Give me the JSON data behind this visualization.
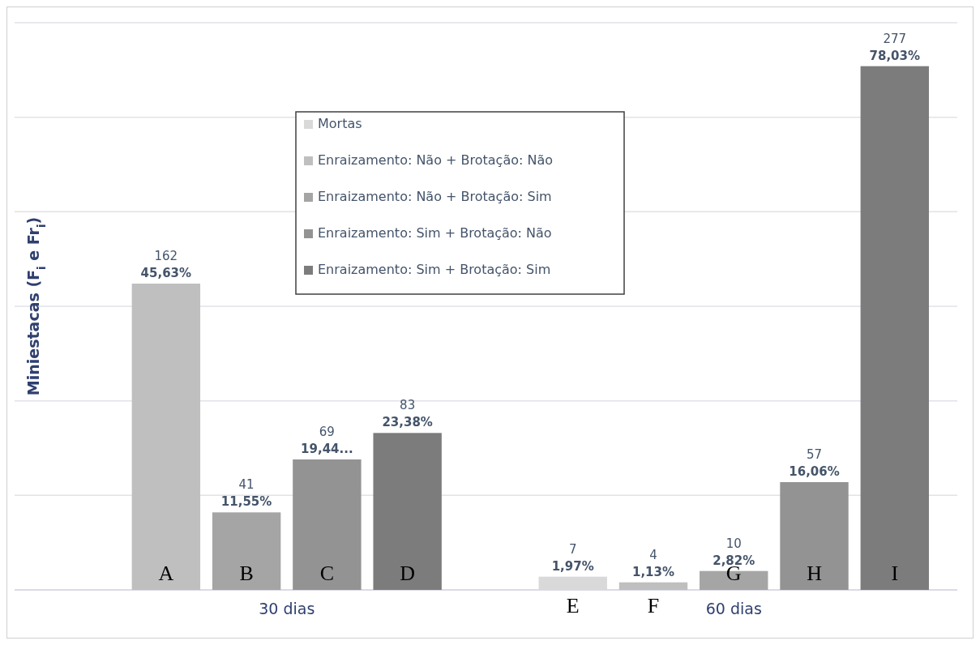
{
  "chart_data": {
    "type": "bar",
    "ylabel": "Miniestacas (F$_{i}$ e Fr$_{i}$)",
    "categories": [
      "30 dias",
      "60 dias"
    ],
    "series": [
      {
        "name": "Mortas",
        "color": "#d9d9d9",
        "values": [
          null,
          7
        ],
        "value_labels": [
          null,
          "7\n1,97%"
        ]
      },
      {
        "name": "Enraizamento: Não + Brotação: Não",
        "color": "#bfbfbf",
        "values": [
          162,
          4
        ],
        "value_labels": [
          "162\n45,63%",
          "4\n1,13%"
        ]
      },
      {
        "name": "Enraizamento: Não + Brotação: Sim",
        "color": "#a5a5a5",
        "values": [
          41,
          10
        ],
        "value_labels": [
          "41\n11,55%",
          "10\n2,82%"
        ]
      },
      {
        "name": "Enraizamento: Sim + Brotação: Não",
        "color": "#939393",
        "values": [
          69,
          57
        ],
        "value_labels": [
          "69\n19,44...",
          "57\n16,06%"
        ]
      },
      {
        "name": "Enraizamento: Sim + Brotação: Sim",
        "color": "#7c7c7c",
        "values": [
          83,
          277
        ],
        "value_labels": [
          "83\n23,38%",
          "277\n78,03%"
        ]
      }
    ],
    "annotations": [
      "A",
      "B",
      "C",
      "D",
      "E",
      "F",
      "G",
      "H",
      "I"
    ],
    "ylim": [
      0,
      300
    ],
    "yticks": [
      {
        "value": 0,
        "label": null
      },
      {
        "value": 50,
        "label": null
      },
      {
        "value": 100,
        "label": null
      },
      {
        "value": 150,
        "label": null
      },
      {
        "value": 200,
        "label": null
      },
      {
        "value": 250,
        "label": null
      },
      {
        "value": 300,
        "label": null
      }
    ],
    "tick_labels": "x",
    "grid": "y",
    "legend": "top"
  }
}
